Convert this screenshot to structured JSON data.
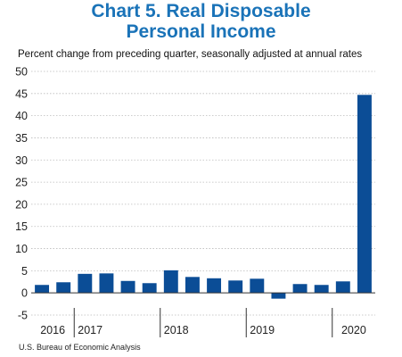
{
  "title_line1": "Chart 5. Real Disposable",
  "title_line2": "Personal Income",
  "subtitle": "Percent change from preceding quarter, seasonally adjusted at annual rates",
  "source": "U.S. Bureau of Economic Analysis",
  "colors": {
    "bar": "#0b4d96",
    "title": "#1a73b8",
    "grid": "#bbbbbb"
  },
  "chart_data": {
    "type": "bar",
    "title": "Chart 5. Real Disposable Personal Income",
    "ylabel": "Percent change from preceding quarter, seasonally adjusted at annual rates",
    "ylim": [
      -5,
      50
    ],
    "yticks": [
      -5,
      0,
      5,
      10,
      15,
      20,
      25,
      30,
      35,
      40,
      45,
      50
    ],
    "grid": true,
    "categories": [
      "2016 Q3",
      "2016 Q4",
      "2017 Q1",
      "2017 Q2",
      "2017 Q3",
      "2017 Q4",
      "2018 Q1",
      "2018 Q2",
      "2018 Q3",
      "2018 Q4",
      "2019 Q1",
      "2019 Q2",
      "2019 Q3",
      "2019 Q4",
      "2020 Q1",
      "2020 Q2"
    ],
    "values": [
      1.8,
      2.4,
      4.3,
      4.4,
      2.7,
      2.2,
      5.1,
      3.6,
      3.3,
      2.8,
      3.2,
      -1.3,
      2.0,
      1.8,
      2.6,
      44.7
    ],
    "x_year_labels": [
      {
        "label": "2016",
        "start": 0,
        "end": 1
      },
      {
        "label": "2017",
        "start": 2,
        "end": 5
      },
      {
        "label": "2018",
        "start": 6,
        "end": 9
      },
      {
        "label": "2019",
        "start": 10,
        "end": 13
      },
      {
        "label": "2020",
        "start": 14,
        "end": 15
      }
    ]
  }
}
